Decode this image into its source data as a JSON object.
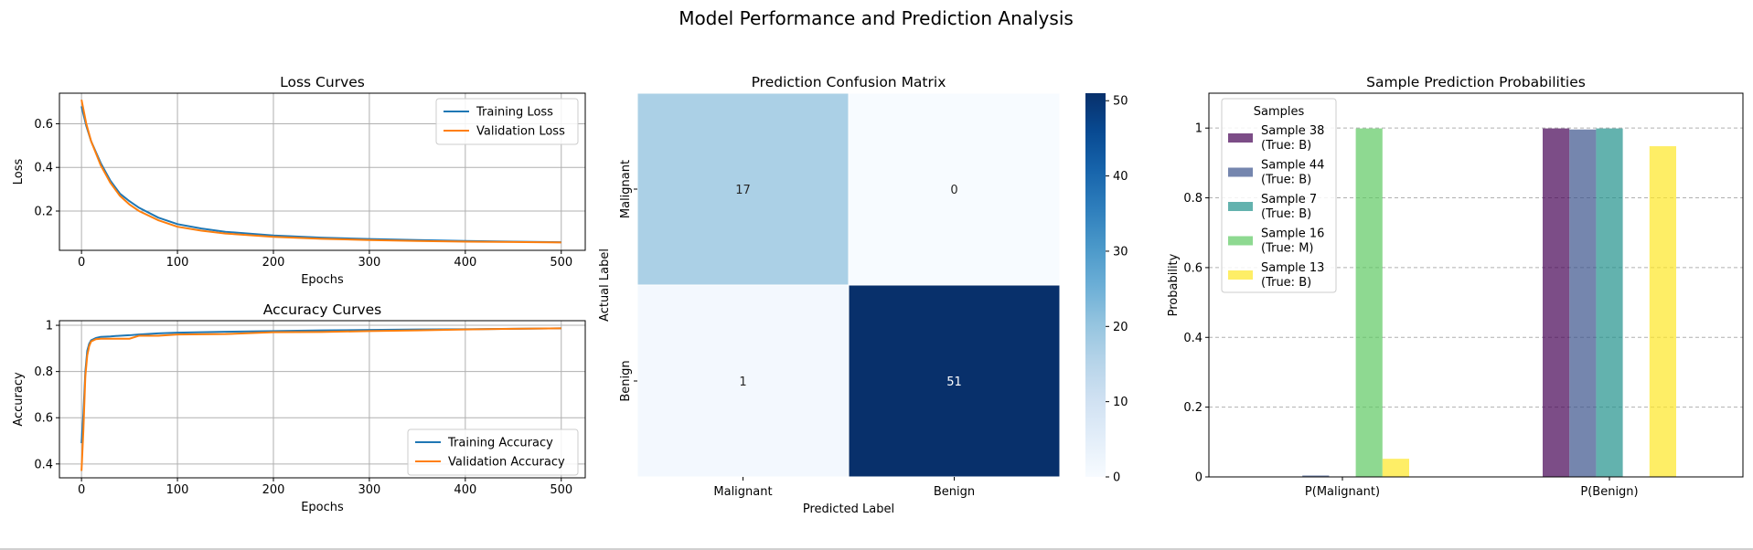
{
  "figure": {
    "suptitle": "Model Performance and Prediction Analysis"
  },
  "chart_data": [
    {
      "type": "line",
      "title": "Loss Curves",
      "xlabel": "Epochs",
      "ylabel": "Loss",
      "xlim": [
        -23,
        525
      ],
      "ylim": [
        0.02,
        0.74
      ],
      "xticks": [
        0,
        100,
        200,
        300,
        400,
        500
      ],
      "yticks": [
        0.2,
        0.4,
        0.6
      ],
      "grid": true,
      "legend": "top-right",
      "series": [
        {
          "name": "Training Loss",
          "color": "#1f77b4",
          "x": [
            0,
            5,
            10,
            20,
            30,
            40,
            50,
            60,
            80,
            100,
            125,
            150,
            200,
            250,
            300,
            350,
            400,
            450,
            500
          ],
          "y": [
            0.68,
            0.59,
            0.52,
            0.42,
            0.34,
            0.28,
            0.245,
            0.215,
            0.17,
            0.14,
            0.12,
            0.105,
            0.088,
            0.078,
            0.072,
            0.067,
            0.063,
            0.06,
            0.057
          ]
        },
        {
          "name": "Validation Loss",
          "color": "#ff7f0e",
          "x": [
            0,
            5,
            10,
            20,
            30,
            40,
            50,
            60,
            80,
            100,
            125,
            150,
            200,
            250,
            300,
            350,
            400,
            450,
            500
          ],
          "y": [
            0.71,
            0.6,
            0.52,
            0.41,
            0.33,
            0.27,
            0.23,
            0.2,
            0.158,
            0.128,
            0.11,
            0.097,
            0.082,
            0.073,
            0.067,
            0.063,
            0.06,
            0.058,
            0.056
          ]
        }
      ]
    },
    {
      "type": "line",
      "title": "Accuracy Curves",
      "xlabel": "Epochs",
      "ylabel": "Accuracy",
      "xlim": [
        -23,
        525
      ],
      "ylim": [
        0.34,
        1.02
      ],
      "xticks": [
        0,
        100,
        200,
        300,
        400,
        500
      ],
      "yticks": [
        0.4,
        0.6,
        0.8,
        1.0
      ],
      "grid": true,
      "legend": "bottom-right",
      "series": [
        {
          "name": "Training Accuracy",
          "color": "#1f77b4",
          "x": [
            0,
            2,
            4,
            6,
            8,
            10,
            15,
            20,
            30,
            40,
            50,
            60,
            80,
            100,
            150,
            200,
            250,
            300,
            350,
            400,
            450,
            500
          ],
          "y": [
            0.49,
            0.62,
            0.8,
            0.89,
            0.92,
            0.935,
            0.945,
            0.95,
            0.952,
            0.955,
            0.957,
            0.96,
            0.965,
            0.968,
            0.972,
            0.975,
            0.978,
            0.98,
            0.982,
            0.983,
            0.985,
            0.987
          ]
        },
        {
          "name": "Validation Accuracy",
          "color": "#ff7f0e",
          "x": [
            0,
            2,
            4,
            6,
            8,
            10,
            15,
            20,
            30,
            40,
            50,
            60,
            80,
            100,
            150,
            200,
            250,
            300,
            350,
            400,
            450,
            500
          ],
          "y": [
            0.37,
            0.55,
            0.78,
            0.87,
            0.91,
            0.93,
            0.94,
            0.942,
            0.942,
            0.942,
            0.942,
            0.955,
            0.955,
            0.96,
            0.962,
            0.97,
            0.971,
            0.975,
            0.978,
            0.982,
            0.985,
            0.987
          ]
        }
      ]
    },
    {
      "type": "heatmap",
      "title": "Prediction Confusion Matrix",
      "xlabel": "Predicted Label",
      "ylabel": "Actual Label",
      "x_categories": [
        "Malignant",
        "Benign"
      ],
      "y_categories": [
        "Malignant",
        "Benign"
      ],
      "values": [
        [
          17,
          0
        ],
        [
          1,
          51
        ]
      ],
      "colorbar": {
        "min": 0,
        "max": 51,
        "ticks": [
          0,
          10,
          20,
          30,
          40,
          50
        ],
        "colormap": "Blues"
      }
    },
    {
      "type": "bar",
      "title": "Sample Prediction Probabilities",
      "xlabel": "",
      "ylabel": "Probability",
      "categories": [
        "P(Malignant)",
        "P(Benign)"
      ],
      "ylim": [
        0,
        1.1
      ],
      "yticks": [
        0.0,
        0.2,
        0.4,
        0.6,
        0.8,
        1.0
      ],
      "grid": "y-dashed",
      "legend": "top-left",
      "legend_title": "Samples",
      "series": [
        {
          "name": "Sample 38\n(True: B)",
          "color": "#440154",
          "values": [
            0.001,
            0.999
          ]
        },
        {
          "name": "Sample 44\n(True: B)",
          "color": "#3b528b",
          "values": [
            0.004,
            0.996
          ]
        },
        {
          "name": "Sample 7\n(True: B)",
          "color": "#21918c",
          "values": [
            0.001,
            0.999
          ]
        },
        {
          "name": "Sample 16\n(True: M)",
          "color": "#5ec962",
          "values": [
            0.999,
            0.001
          ]
        },
        {
          "name": "Sample 13\n(True: B)",
          "color": "#fde725",
          "values": [
            0.052,
            0.948
          ]
        }
      ]
    }
  ]
}
